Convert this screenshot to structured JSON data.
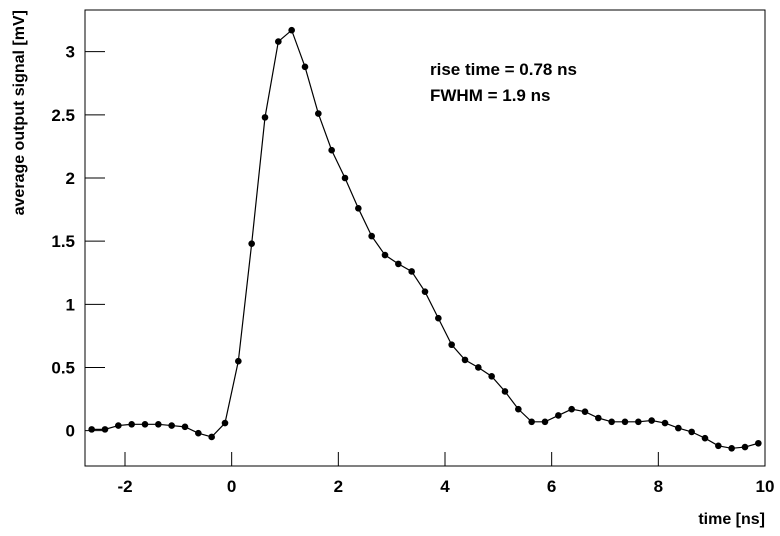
{
  "chart_data": {
    "type": "line",
    "x_label": "time [ns]",
    "y_label": "average output signal [mV]",
    "annotations": [
      "rise time = 0.78 ns",
      "FWHM = 1.9 ns"
    ],
    "x": [
      -2.625,
      -2.375,
      -2.125,
      -1.875,
      -1.625,
      -1.375,
      -1.125,
      -0.875,
      -0.625,
      -0.375,
      -0.125,
      0.125,
      0.375,
      0.625,
      0.875,
      1.125,
      1.375,
      1.625,
      1.875,
      2.125,
      2.375,
      2.625,
      2.875,
      3.125,
      3.375,
      3.625,
      3.875,
      4.125,
      4.375,
      4.625,
      4.875,
      5.125,
      5.375,
      5.625,
      5.875,
      6.125,
      6.375,
      6.625,
      6.875,
      7.125,
      7.375,
      7.625,
      7.875,
      8.125,
      8.375,
      8.625,
      8.875,
      9.125,
      9.375,
      9.625,
      9.875
    ],
    "series": [
      {
        "color": "#000000",
        "values": [
          0.01,
          0.01,
          0.04,
          0.05,
          0.05,
          0.05,
          0.04,
          0.03,
          -0.02,
          -0.05,
          0.06,
          0.55,
          1.48,
          2.48,
          3.08,
          3.17,
          2.88,
          2.51,
          2.22,
          2.0,
          1.76,
          1.54,
          1.39,
          1.32,
          1.26,
          1.1,
          0.89,
          0.68,
          0.56,
          0.5,
          0.43,
          0.31,
          0.17,
          0.07,
          0.07,
          0.12,
          0.17,
          0.15,
          0.1,
          0.07,
          0.07,
          0.07,
          0.08,
          0.06,
          0.02,
          -0.01,
          -0.06,
          -0.12,
          -0.14,
          -0.13,
          -0.1
        ]
      }
    ],
    "xlim": [
      -2.75,
      10
    ],
    "ylim": [
      -0.28,
      3.33
    ],
    "xticks": [
      -2,
      0,
      2,
      4,
      6,
      8,
      10
    ],
    "yticks": [
      0,
      0.5,
      1,
      1.5,
      2,
      2.5,
      3
    ]
  }
}
